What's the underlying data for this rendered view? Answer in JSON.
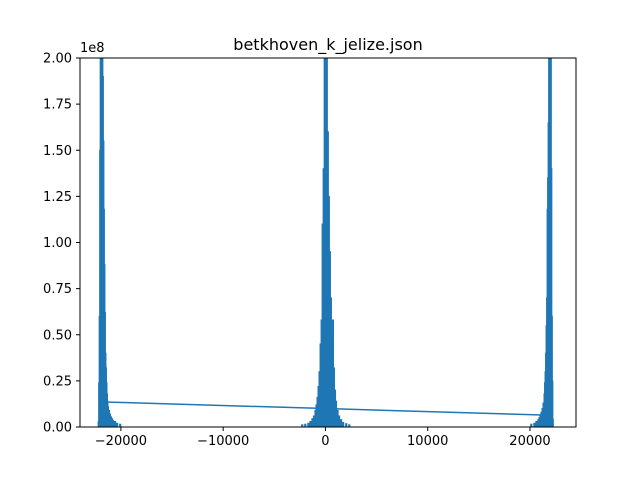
{
  "chart_data": {
    "type": "bar",
    "title": "betkhoven_k_jelize.json",
    "xlabel": "",
    "ylabel": "",
    "xlim": [
      -24000,
      24500
    ],
    "ylim": [
      0,
      200000000
    ],
    "y_offset_label": "1e8",
    "xticks": [
      -20000,
      -10000,
      0,
      10000,
      20000
    ],
    "xtick_labels": [
      "−20000",
      "−10000",
      "0",
      "10000",
      "20000"
    ],
    "yticks": [
      0,
      25000000,
      50000000,
      75000000,
      100000000,
      125000000,
      150000000,
      175000000,
      200000000
    ],
    "ytick_labels": [
      "0.00",
      "0.25",
      "0.50",
      "0.75",
      "1.00",
      "1.25",
      "1.50",
      "1.75",
      "2.00"
    ],
    "grid": false,
    "color": "#1f77b4",
    "peaks": [
      {
        "center": -21900,
        "bars": [
          {
            "dx": -300,
            "value": 3000000
          },
          {
            "dx": -250,
            "value": 24000000
          },
          {
            "dx": -200,
            "value": 60000000
          },
          {
            "dx": -150,
            "value": 150000000
          },
          {
            "dx": -100,
            "value": 200000000
          },
          {
            "dx": -50,
            "value": 200000000
          },
          {
            "dx": 0,
            "value": 200000000
          },
          {
            "dx": 50,
            "value": 200000000
          },
          {
            "dx": 100,
            "value": 190000000
          },
          {
            "dx": 150,
            "value": 155000000
          },
          {
            "dx": 200,
            "value": 118000000
          },
          {
            "dx": 250,
            "value": 88000000
          },
          {
            "dx": 300,
            "value": 62000000
          },
          {
            "dx": 350,
            "value": 40000000
          },
          {
            "dx": 400,
            "value": 32000000
          },
          {
            "dx": 450,
            "value": 24000000
          },
          {
            "dx": 500,
            "value": 18000000
          },
          {
            "dx": 550,
            "value": 14000000
          },
          {
            "dx": 600,
            "value": 11000000
          },
          {
            "dx": 700,
            "value": 9000000
          },
          {
            "dx": 800,
            "value": 7000000
          },
          {
            "dx": 900,
            "value": 5500000
          },
          {
            "dx": 1000,
            "value": 4500000
          },
          {
            "dx": 1100,
            "value": 3500000
          },
          {
            "dx": 1300,
            "value": 3000000
          },
          {
            "dx": 1500,
            "value": 2000000
          },
          {
            "dx": 1800,
            "value": 1500000
          }
        ]
      },
      {
        "center": 0,
        "bars": [
          {
            "dx": -2300,
            "value": 1200000
          },
          {
            "dx": -2000,
            "value": 1500000
          },
          {
            "dx": -1700,
            "value": 2000000
          },
          {
            "dx": -1500,
            "value": 3000000
          },
          {
            "dx": -1300,
            "value": 4500000
          },
          {
            "dx": -1150,
            "value": 6000000
          },
          {
            "dx": -1000,
            "value": 9000000
          },
          {
            "dx": -900,
            "value": 12000000
          },
          {
            "dx": -800,
            "value": 16000000
          },
          {
            "dx": -700,
            "value": 22000000
          },
          {
            "dx": -600,
            "value": 30000000
          },
          {
            "dx": -500,
            "value": 45000000
          },
          {
            "dx": -400,
            "value": 58000000
          },
          {
            "dx": -300,
            "value": 110000000
          },
          {
            "dx": -200,
            "value": 140000000
          },
          {
            "dx": -100,
            "value": 200000000
          },
          {
            "dx": 0,
            "value": 200000000
          },
          {
            "dx": 100,
            "value": 200000000
          },
          {
            "dx": 200,
            "value": 160000000
          },
          {
            "dx": 300,
            "value": 125000000
          },
          {
            "dx": 400,
            "value": 95000000
          },
          {
            "dx": 500,
            "value": 70000000
          },
          {
            "dx": 600,
            "value": 48000000
          },
          {
            "dx": 700,
            "value": 58000000
          },
          {
            "dx": 800,
            "value": 32000000
          },
          {
            "dx": 900,
            "value": 20000000
          },
          {
            "dx": 1000,
            "value": 14000000
          },
          {
            "dx": 1150,
            "value": 9000000
          },
          {
            "dx": 1300,
            "value": 6000000
          },
          {
            "dx": 1500,
            "value": 4000000
          },
          {
            "dx": 1700,
            "value": 2500000
          },
          {
            "dx": 2000,
            "value": 1800000
          },
          {
            "dx": 2300,
            "value": 1200000
          }
        ]
      },
      {
        "center": 21900,
        "bars": [
          {
            "dx": -1800,
            "value": 1500000
          },
          {
            "dx": -1500,
            "value": 2000000
          },
          {
            "dx": -1300,
            "value": 3000000
          },
          {
            "dx": -1100,
            "value": 4000000
          },
          {
            "dx": -1000,
            "value": 5000000
          },
          {
            "dx": -900,
            "value": 6000000
          },
          {
            "dx": -800,
            "value": 8000000
          },
          {
            "dx": -700,
            "value": 10000000
          },
          {
            "dx": -600,
            "value": 13000000
          },
          {
            "dx": -500,
            "value": 18000000
          },
          {
            "dx": -450,
            "value": 24000000
          },
          {
            "dx": -400,
            "value": 30000000
          },
          {
            "dx": -350,
            "value": 40000000
          },
          {
            "dx": -300,
            "value": 55000000
          },
          {
            "dx": -250,
            "value": 70000000
          },
          {
            "dx": -200,
            "value": 118000000
          },
          {
            "dx": -150,
            "value": 135000000
          },
          {
            "dx": -100,
            "value": 165000000
          },
          {
            "dx": -50,
            "value": 200000000
          },
          {
            "dx": 0,
            "value": 200000000
          },
          {
            "dx": 50,
            "value": 200000000
          },
          {
            "dx": 100,
            "value": 200000000
          },
          {
            "dx": 150,
            "value": 140000000
          },
          {
            "dx": 200,
            "value": 60000000
          },
          {
            "dx": 250,
            "value": 25000000
          },
          {
            "dx": 300,
            "value": 4000000
          }
        ]
      }
    ],
    "line": {
      "x": [
        -21200,
        0,
        21200
      ],
      "y": [
        13500000,
        10000000,
        6500000
      ]
    }
  }
}
